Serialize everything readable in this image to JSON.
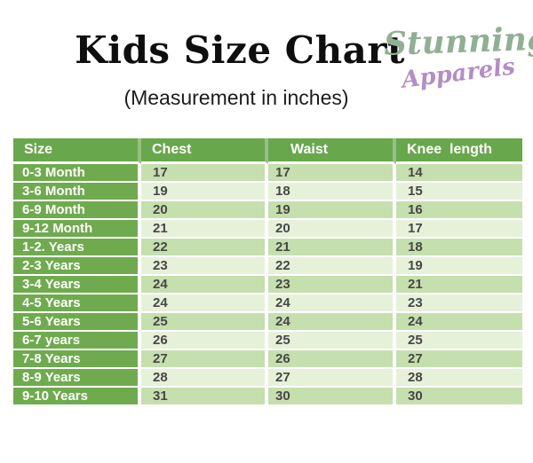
{
  "header": {
    "title": "Kids Size Chart",
    "subtitle": "(Measurement in inches)",
    "brand": {
      "line1": "Stunning",
      "line2": "Apparels",
      "line1_color": "#8fb092",
      "line2_color": "#b48cc6"
    }
  },
  "table": {
    "columns": [
      "Size",
      "Chest",
      "Waist",
      "Knee  length"
    ],
    "rows": [
      {
        "size": "0-3 Month",
        "chest": "17",
        "waist": "17",
        "knee": "14"
      },
      {
        "size": "3-6 Month",
        "chest": "19",
        "waist": "18",
        "knee": "15"
      },
      {
        "size": "6-9 Month",
        "chest": "20",
        "waist": "19",
        "knee": "16"
      },
      {
        "size": "9-12 Month",
        "chest": "21",
        "waist": "20",
        "knee": "17"
      },
      {
        "size": "1-2. Years",
        "chest": "22",
        "waist": "21",
        "knee": "18"
      },
      {
        "size": "2-3 Years",
        "chest": "23",
        "waist": "22",
        "knee": "19"
      },
      {
        "size": "3-4 Years",
        "chest": "24",
        "waist": "23",
        "knee": "21"
      },
      {
        "size": "4-5 Years",
        "chest": "24",
        "waist": "24",
        "knee": "23"
      },
      {
        "size": "5-6 Years",
        "chest": "25",
        "waist": "24",
        "knee": "24"
      },
      {
        "size": "6-7 years",
        "chest": "26",
        "waist": "25",
        "knee": "25"
      },
      {
        "size": "7-8 Years",
        "chest": "27",
        "waist": "26",
        "knee": "27"
      },
      {
        "size": "8-9 Years",
        "chest": "28",
        "waist": "27",
        "knee": "28"
      },
      {
        "size": "9-10 Years",
        "chest": "31",
        "waist": "30",
        "knee": "30"
      }
    ],
    "colors": {
      "header_bg": "#69a74c",
      "size_column_bg": "#6fab4e",
      "stripe_dark": "#c6dfae",
      "stripe_light": "#e6f1da",
      "header_text": "#ffffff",
      "cell_text": "#474747"
    }
  }
}
